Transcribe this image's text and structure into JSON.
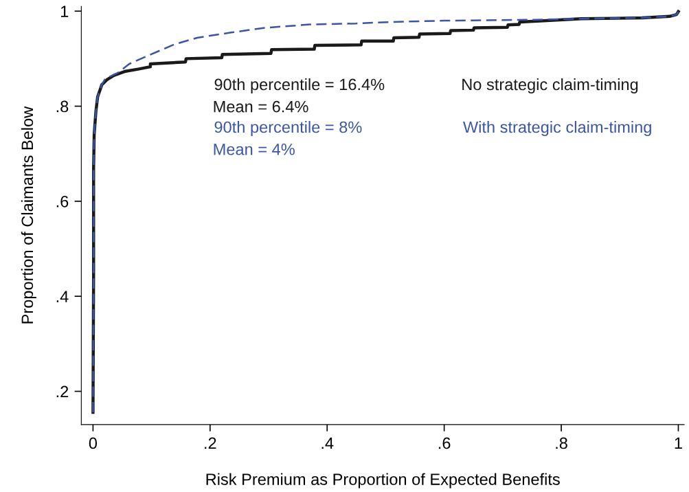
{
  "chart_data": {
    "type": "line",
    "xlabel": "Risk Premium as Proportion of Expected Benefits",
    "ylabel": "Proportion of Claimants Below",
    "xlim": [
      -0.02,
      1.01
    ],
    "ylim": [
      0.13,
      1.01
    ],
    "xticks": [
      0,
      {
        "value": 0.2,
        "label": ".2"
      },
      {
        "value": 0.4,
        "label": ".4"
      },
      {
        "value": 0.6,
        "label": ".6"
      },
      {
        "value": 0.8,
        "label": ".8"
      },
      1
    ],
    "yticks": [
      {
        "value": 0.2,
        "label": ".2"
      },
      {
        "value": 0.4,
        "label": ".4"
      },
      {
        "value": 0.6,
        "label": ".6"
      },
      {
        "value": 0.8,
        "label": ".8"
      },
      1
    ],
    "grid": false,
    "legend": false,
    "annotations": [
      "90th percentile = 16.4%",
      "Mean = 6.4%",
      "90th percentile = 8%",
      "Mean = 4%"
    ],
    "series": [
      {
        "name": "No strategic claim-timing",
        "color": "#1a1a1a",
        "line_style": "solid",
        "x": [
          0,
          0.001,
          0.001,
          0.002,
          0.005,
          0.008,
          0.015,
          0.024,
          0.036,
          0.054,
          0.077,
          0.098,
          0.098,
          0.158,
          0.159,
          0.22,
          0.221,
          0.304,
          0.305,
          0.378,
          0.379,
          0.458,
          0.459,
          0.513,
          0.514,
          0.557,
          0.558,
          0.61,
          0.611,
          0.65,
          0.651,
          0.708,
          0.709,
          0.728,
          0.729,
          0.775,
          0.834,
          0.892,
          0.938,
          0.985,
          0.997,
          1.0
        ],
        "values": [
          0.156,
          0.45,
          0.67,
          0.74,
          0.79,
          0.82,
          0.845,
          0.856,
          0.865,
          0.873,
          0.878,
          0.883,
          0.889,
          0.893,
          0.9,
          0.902,
          0.909,
          0.911,
          0.919,
          0.92,
          0.928,
          0.929,
          0.937,
          0.937,
          0.944,
          0.945,
          0.952,
          0.953,
          0.959,
          0.96,
          0.965,
          0.966,
          0.971,
          0.972,
          0.977,
          0.98,
          0.984,
          0.985,
          0.986,
          0.989,
          0.993,
          0.999
        ]
      },
      {
        "name": "With strategic claim-timing",
        "color": "#3a55a4",
        "line_style": "dashed",
        "x": [
          0,
          0.001,
          0.001,
          0.002,
          0.005,
          0.008,
          0.015,
          0.021,
          0.042,
          0.062,
          0.097,
          0.139,
          0.178,
          0.236,
          0.294,
          0.371,
          0.449,
          0.504,
          0.6,
          0.755,
          0.834,
          0.892,
          0.938,
          0.985,
          0.997,
          1.0
        ],
        "values": [
          0.156,
          0.45,
          0.67,
          0.74,
          0.79,
          0.82,
          0.845,
          0.858,
          0.87,
          0.889,
          0.908,
          0.93,
          0.944,
          0.955,
          0.965,
          0.972,
          0.974,
          0.977,
          0.98,
          0.982,
          0.984,
          0.985,
          0.986,
          0.989,
          0.993,
          0.999
        ]
      }
    ]
  }
}
